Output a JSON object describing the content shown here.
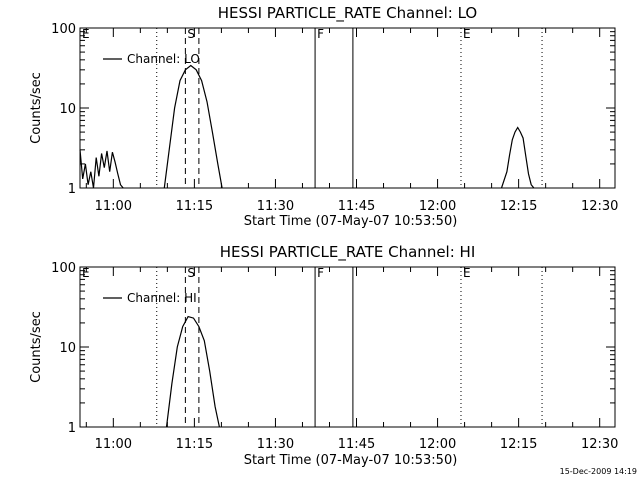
{
  "footer": {
    "timestamp": "15-Dec-2009 14:19"
  },
  "chart_data": [
    {
      "type": "line",
      "title": "HESSI PARTICLE_RATE Channel: LO",
      "xlabel": "Start Time (07-May-07 10:53:50)",
      "ylabel": "Counts/sec",
      "yscale": "log",
      "ylim": [
        1,
        100
      ],
      "xlim_minutes_after_10_53_50": [
        0,
        99
      ],
      "x_ticks": [
        "11:00",
        "11:15",
        "11:30",
        "11:45",
        "12:00",
        "12:15",
        "12:30"
      ],
      "y_ticks": [
        "1",
        "10",
        "100"
      ],
      "legend": {
        "placement": "top-left",
        "entries": [
          {
            "label": "Channel: LO"
          }
        ]
      },
      "series": [
        {
          "name": "Channel: LO",
          "segments": [
            {
              "x": [
                0.0,
                0.5,
                1.0,
                1.5,
                2.0,
                2.5,
                3.0,
                3.5,
                4.0,
                4.5,
                5.0,
                5.5,
                6.0,
                6.5,
                7.0,
                7.5,
                8.0
              ],
              "y": [
                3.0,
                1.3,
                2.0,
                1.1,
                1.6,
                1.0,
                2.4,
                1.4,
                2.7,
                1.8,
                2.9,
                1.6,
                2.8,
                2.1,
                1.5,
                1.1,
                1.0
              ]
            },
            {
              "x": [
                15.6,
                16.5,
                17.5,
                18.5,
                19.5,
                20.5,
                21.5,
                22.5,
                23.5,
                24.5,
                25.5,
                26.3
              ],
              "y": [
                1.0,
                3.0,
                10.0,
                22.0,
                30.0,
                34.0,
                30.0,
                22.0,
                12.0,
                5.0,
                2.0,
                1.0
              ]
            },
            {
              "x": [
                78.0,
                79.0,
                79.5,
                80.0,
                80.5,
                81.0,
                81.5,
                82.0,
                82.5,
                83.0,
                83.5,
                84.0
              ],
              "y": [
                1.0,
                1.6,
                2.6,
                4.0,
                5.0,
                5.7,
                5.0,
                4.2,
                2.5,
                1.5,
                1.1,
                1.0
              ]
            }
          ]
        }
      ],
      "annotations": [
        {
          "label": "E",
          "x": 0.0,
          "line": "dotted"
        },
        {
          "label": "",
          "x": 14.2,
          "line": "dotted"
        },
        {
          "label": "S",
          "x": 19.5,
          "line": "dashed"
        },
        {
          "label": "",
          "x": 22.0,
          "line": "dashed"
        },
        {
          "label": "F",
          "x": 43.5,
          "line": "solid"
        },
        {
          "label": "",
          "x": 50.5,
          "line": "solid"
        },
        {
          "label": "E",
          "x": 70.5,
          "line": "dotted"
        },
        {
          "label": "",
          "x": 85.5,
          "line": "dotted"
        }
      ]
    },
    {
      "type": "line",
      "title": "HESSI PARTICLE_RATE Channel: HI",
      "xlabel": "Start Time (07-May-07 10:53:50)",
      "ylabel": "Counts/sec",
      "yscale": "log",
      "ylim": [
        1,
        100
      ],
      "xlim_minutes_after_10_53_50": [
        0,
        99
      ],
      "x_ticks": [
        "11:00",
        "11:15",
        "11:30",
        "11:45",
        "12:00",
        "12:15",
        "12:30"
      ],
      "y_ticks": [
        "1",
        "10",
        "100"
      ],
      "legend": {
        "placement": "top-left",
        "entries": [
          {
            "label": "Channel: HI"
          }
        ]
      },
      "series": [
        {
          "name": "Channel: HI",
          "segments": [
            {
              "x": [
                16.0,
                17.0,
                18.0,
                19.0,
                20.0,
                21.0,
                22.0,
                23.0,
                24.0,
                25.0,
                25.8
              ],
              "y": [
                1.0,
                3.5,
                10.0,
                18.0,
                24.0,
                23.0,
                18.0,
                12.0,
                5.0,
                1.8,
                1.0
              ]
            }
          ]
        }
      ],
      "annotations": [
        {
          "label": "E",
          "x": 0.0,
          "line": "dotted"
        },
        {
          "label": "",
          "x": 14.2,
          "line": "dotted"
        },
        {
          "label": "S",
          "x": 19.5,
          "line": "dashed"
        },
        {
          "label": "",
          "x": 22.0,
          "line": "dashed"
        },
        {
          "label": "F",
          "x": 43.5,
          "line": "solid"
        },
        {
          "label": "",
          "x": 50.5,
          "line": "solid"
        },
        {
          "label": "E",
          "x": 70.5,
          "line": "dotted"
        },
        {
          "label": "",
          "x": 85.5,
          "line": "dotted"
        }
      ]
    }
  ]
}
